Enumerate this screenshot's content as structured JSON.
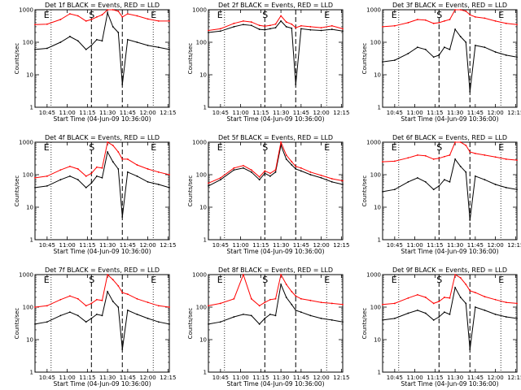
{
  "figure": {
    "panels": [
      {
        "title": "Det 1f BLACK = Events, RED = LLD",
        "xlabel": "Start Time (04-Jun-09 10:36:00)",
        "ylabel": "Counts/sec",
        "markers": [
          "E",
          "S",
          "E"
        ],
        "xticks": [
          "10:45",
          "11:00",
          "11:15",
          "11:30",
          "11:45",
          "12:00",
          "12:15"
        ],
        "yticks": [
          "1",
          "10",
          "100",
          "1000"
        ]
      },
      {
        "title": "Det 2f BLACK = Events, RED = LLD",
        "xlabel": "Start Time (04-Jun-09 10:36:00)",
        "ylabel": "Counts/sec",
        "markers": [
          "E",
          "S",
          "E"
        ],
        "xticks": [
          "10:45",
          "11:00",
          "11:15",
          "11:30",
          "11:45",
          "12:00",
          "12:15"
        ],
        "yticks": [
          "1",
          "10",
          "100",
          "1000"
        ]
      },
      {
        "title": "Det 3f BLACK = Events, RED = LLD",
        "xlabel": "Start Time (04-Jun-09 10:36:00)",
        "ylabel": "Counts/sec",
        "markers": [
          "E",
          "S",
          "E"
        ],
        "xticks": [
          "10:45",
          "11:00",
          "11:15",
          "11:30",
          "11:45",
          "12:00",
          "12:15"
        ],
        "yticks": [
          "1",
          "10",
          "100",
          "1000"
        ]
      },
      {
        "title": "Det 4f BLACK = Events, RED = LLD",
        "xlabel": "Start Time (04-Jun-09 10:36:00)",
        "ylabel": "Counts/sec",
        "markers": [
          "E",
          "S",
          "E"
        ],
        "xticks": [
          "10:45",
          "11:00",
          "11:15",
          "11:30",
          "11:45",
          "12:00",
          "12:15"
        ],
        "yticks": [
          "1",
          "10",
          "100",
          "1000"
        ]
      },
      {
        "title": "Det 5f BLACK = Events, RED = LLD",
        "xlabel": "Start Time (04-Jun-09 10:36:00)",
        "ylabel": "Counts/sec",
        "markers": [
          "E",
          "S",
          "E"
        ],
        "xticks": [
          "10:45",
          "11:00",
          "11:15",
          "11:30",
          "11:45",
          "12:00",
          "12:15"
        ],
        "yticks": [
          "1",
          "10",
          "100",
          "1000"
        ]
      },
      {
        "title": "Det 6f BLACK = Events, RED = LLD",
        "xlabel": "Start Time (04-Jun-09 10:36:00)",
        "ylabel": "Counts/sec",
        "markers": [
          "E",
          "S",
          "E"
        ],
        "xticks": [
          "10:45",
          "11:00",
          "11:15",
          "11:30",
          "11:45",
          "12:00",
          "12:15"
        ],
        "yticks": [
          "1",
          "10",
          "100",
          "1000"
        ]
      },
      {
        "title": "Det 7f BLACK = Events, RED = LLD",
        "xlabel": "Start Time (04-Jun-09 10:36:00)",
        "ylabel": "Counts/sec",
        "markers": [
          "E",
          "S",
          "E"
        ],
        "xticks": [
          "10:45",
          "11:00",
          "11:15",
          "11:30",
          "11:45",
          "12:00",
          "12:15"
        ],
        "yticks": [
          "1",
          "10",
          "100",
          "1000"
        ]
      },
      {
        "title": "Det 8f BLACK = Events, RED = LLD",
        "xlabel": "Start Time (04-Jun-09 10:36:00)",
        "ylabel": "Counts/sec",
        "markers": [
          "E",
          "S",
          "E"
        ],
        "xticks": [
          "10:45",
          "11:00",
          "11:15",
          "11:30",
          "11:45",
          "12:00",
          "12:15"
        ],
        "yticks": [
          "1",
          "10",
          "100",
          "1000"
        ]
      },
      {
        "title": "Det 9f BLACK = Events, RED = LLD",
        "xlabel": "Start Time (04-Jun-09 10:36:00)",
        "ylabel": "Counts/sec",
        "markers": [
          "E",
          "S",
          "E"
        ],
        "xticks": [
          "10:45",
          "11:00",
          "11:15",
          "11:30",
          "11:45",
          "12:00",
          "12:15"
        ],
        "yticks": [
          "1",
          "10",
          "100",
          "1000"
        ]
      }
    ]
  },
  "colors": {
    "events": "#000000",
    "lld": "#ff0000"
  },
  "chart_data": [
    {
      "type": "line",
      "title": "Det 1f BLACK = Events, RED = LLD",
      "xlabel": "Start Time (04-Jun-09 10:36:00)",
      "ylabel": "Counts/sec",
      "y_scale": "log",
      "ylim": [
        1,
        1000
      ],
      "xlim": [
        "10:36",
        "12:16"
      ],
      "vlines_dotted": [
        "10:48",
        "12:04"
      ],
      "vlines_dashed": [
        "11:18",
        "11:41"
      ],
      "x": [
        "10:36",
        "10:45",
        "10:55",
        "11:02",
        "11:08",
        "11:14",
        "11:18",
        "11:22",
        "11:26",
        "11:30",
        "11:34",
        "11:38",
        "11:41",
        "11:45",
        "11:52",
        "12:00",
        "12:08",
        "12:16"
      ],
      "series": [
        {
          "name": "Events",
          "color": "#000000",
          "values": [
            60,
            65,
            100,
            150,
            110,
            60,
            80,
            120,
            110,
            800,
            300,
            200,
            5,
            120,
            100,
            80,
            70,
            60
          ]
        },
        {
          "name": "LLD",
          "color": "#ff0000",
          "values": [
            350,
            360,
            500,
            750,
            650,
            450,
            500,
            600,
            700,
            1000,
            1000,
            900,
            600,
            750,
            650,
            520,
            450,
            450
          ]
        }
      ]
    },
    {
      "type": "line",
      "title": "Det 2f BLACK = Events, RED = LLD",
      "xlabel": "Start Time (04-Jun-09 10:36:00)",
      "ylabel": "Counts/sec",
      "y_scale": "log",
      "ylim": [
        1,
        1000
      ],
      "xlim": [
        "10:36",
        "12:16"
      ],
      "vlines_dotted": [
        "10:48",
        "12:04"
      ],
      "vlines_dashed": [
        "11:18",
        "11:41"
      ],
      "x": [
        "10:36",
        "10:45",
        "10:55",
        "11:02",
        "11:08",
        "11:14",
        "11:18",
        "11:22",
        "11:26",
        "11:30",
        "11:34",
        "11:38",
        "11:41",
        "11:45",
        "11:52",
        "12:00",
        "12:08",
        "12:16"
      ],
      "series": [
        {
          "name": "Events",
          "color": "#000000",
          "values": [
            200,
            220,
            300,
            350,
            330,
            250,
            240,
            260,
            280,
            450,
            300,
            270,
            5,
            260,
            240,
            230,
            250,
            220
          ]
        },
        {
          "name": "LLD",
          "color": "#ff0000",
          "values": [
            230,
            260,
            380,
            450,
            420,
            330,
            310,
            330,
            360,
            650,
            420,
            360,
            280,
            320,
            300,
            280,
            320,
            260
          ]
        }
      ]
    },
    {
      "type": "line",
      "title": "Det 3f BLACK = Events, RED = LLD",
      "xlabel": "Start Time (04-Jun-09 10:36:00)",
      "ylabel": "Counts/sec",
      "y_scale": "log",
      "ylim": [
        1,
        1000
      ],
      "xlim": [
        "10:36",
        "12:16"
      ],
      "vlines_dotted": [
        "10:48",
        "12:04"
      ],
      "vlines_dashed": [
        "11:18",
        "11:41"
      ],
      "x": [
        "10:36",
        "10:45",
        "10:55",
        "11:02",
        "11:08",
        "11:14",
        "11:18",
        "11:22",
        "11:26",
        "11:30",
        "11:34",
        "11:38",
        "11:41",
        "11:45",
        "11:52",
        "12:00",
        "12:08",
        "12:16"
      ],
      "series": [
        {
          "name": "Events",
          "color": "#000000",
          "values": [
            25,
            28,
            45,
            70,
            60,
            35,
            40,
            70,
            60,
            250,
            150,
            100,
            3,
            80,
            70,
            50,
            40,
            35
          ]
        },
        {
          "name": "LLD",
          "color": "#ff0000",
          "values": [
            300,
            320,
            400,
            500,
            480,
            380,
            400,
            450,
            500,
            1000,
            1000,
            900,
            700,
            600,
            550,
            450,
            380,
            350
          ]
        }
      ]
    },
    {
      "type": "line",
      "title": "Det 4f BLACK = Events, RED = LLD",
      "xlabel": "Start Time (04-Jun-09 10:36:00)",
      "ylabel": "Counts/sec",
      "y_scale": "log",
      "ylim": [
        1,
        1000
      ],
      "xlim": [
        "10:36",
        "12:16"
      ],
      "vlines_dotted": [
        "10:48",
        "12:04"
      ],
      "vlines_dashed": [
        "11:18",
        "11:41"
      ],
      "x": [
        "10:36",
        "10:45",
        "10:55",
        "11:02",
        "11:08",
        "11:14",
        "11:18",
        "11:22",
        "11:26",
        "11:30",
        "11:34",
        "11:38",
        "11:41",
        "11:45",
        "11:52",
        "12:00",
        "12:08",
        "12:16"
      ],
      "series": [
        {
          "name": "Events",
          "color": "#000000",
          "values": [
            40,
            45,
            70,
            90,
            70,
            40,
            55,
            90,
            80,
            500,
            250,
            150,
            5,
            120,
            90,
            60,
            50,
            40
          ]
        },
        {
          "name": "LLD",
          "color": "#ff0000",
          "values": [
            80,
            90,
            140,
            180,
            150,
            90,
            110,
            170,
            160,
            1000,
            800,
            500,
            300,
            300,
            200,
            150,
            120,
            100
          ]
        }
      ]
    },
    {
      "type": "line",
      "title": "Det 5f BLACK = Events, RED = LLD",
      "xlabel": "Start Time (04-Jun-09 10:36:00)",
      "ylabel": "Counts/sec",
      "y_scale": "log",
      "ylim": [
        1,
        1000
      ],
      "xlim": [
        "10:36",
        "12:16"
      ],
      "vlines_dotted": [
        "10:48",
        "12:04"
      ],
      "vlines_dashed": [
        "11:18",
        "11:41"
      ],
      "x": [
        "10:36",
        "10:45",
        "10:55",
        "11:02",
        "11:08",
        "11:14",
        "11:18",
        "11:22",
        "11:26",
        "11:30",
        "11:34",
        "11:38",
        "11:41",
        "11:45",
        "11:52",
        "12:00",
        "12:08",
        "12:16"
      ],
      "series": [
        {
          "name": "Events",
          "color": "#000000",
          "values": [
            45,
            70,
            140,
            160,
            120,
            70,
            110,
            90,
            120,
            800,
            300,
            200,
            150,
            130,
            100,
            80,
            60,
            50
          ]
        },
        {
          "name": "LLD",
          "color": "#ff0000",
          "values": [
            55,
            80,
            160,
            190,
            140,
            85,
            130,
            110,
            140,
            1000,
            400,
            250,
            180,
            160,
            120,
            95,
            75,
            65
          ]
        }
      ]
    },
    {
      "type": "line",
      "title": "Det 6f BLACK = Events, RED = LLD",
      "xlabel": "Start Time (04-Jun-09 10:36:00)",
      "ylabel": "Counts/sec",
      "y_scale": "log",
      "ylim": [
        1,
        1000
      ],
      "xlim": [
        "10:36",
        "12:16"
      ],
      "vlines_dotted": [
        "10:48",
        "12:04"
      ],
      "vlines_dashed": [
        "11:18",
        "11:41"
      ],
      "x": [
        "10:36",
        "10:45",
        "10:55",
        "11:02",
        "11:08",
        "11:14",
        "11:18",
        "11:22",
        "11:26",
        "11:30",
        "11:34",
        "11:38",
        "11:41",
        "11:45",
        "11:52",
        "12:00",
        "12:08",
        "12:16"
      ],
      "series": [
        {
          "name": "Events",
          "color": "#000000",
          "values": [
            30,
            35,
            60,
            80,
            60,
            35,
            45,
            70,
            60,
            300,
            180,
            120,
            4,
            90,
            70,
            50,
            40,
            35
          ]
        },
        {
          "name": "LLD",
          "color": "#ff0000",
          "values": [
            250,
            260,
            330,
            400,
            380,
            300,
            320,
            360,
            400,
            1000,
            1000,
            800,
            500,
            450,
            400,
            350,
            300,
            280
          ]
        }
      ]
    },
    {
      "type": "line",
      "title": "Det 7f BLACK = Events, RED = LLD",
      "xlabel": "Start Time (04-Jun-09 10:36:00)",
      "ylabel": "Counts/sec",
      "y_scale": "log",
      "ylim": [
        1,
        1000
      ],
      "xlim": [
        "10:36",
        "12:16"
      ],
      "vlines_dotted": [
        "10:48",
        "12:04"
      ],
      "vlines_dashed": [
        "11:18",
        "11:41"
      ],
      "x": [
        "10:36",
        "10:45",
        "10:55",
        "11:02",
        "11:08",
        "11:14",
        "11:18",
        "11:22",
        "11:26",
        "11:30",
        "11:34",
        "11:38",
        "11:41",
        "11:45",
        "11:52",
        "12:00",
        "12:08",
        "12:16"
      ],
      "series": [
        {
          "name": "Events",
          "color": "#000000",
          "values": [
            30,
            35,
            55,
            70,
            55,
            35,
            45,
            60,
            55,
            300,
            150,
            100,
            5,
            80,
            60,
            45,
            35,
            30
          ]
        },
        {
          "name": "LLD",
          "color": "#ff0000",
          "values": [
            100,
            110,
            170,
            220,
            180,
            110,
            130,
            170,
            160,
            1000,
            700,
            450,
            280,
            250,
            180,
            140,
            110,
            100
          ]
        }
      ]
    },
    {
      "type": "line",
      "title": "Det 8f BLACK = Events, RED = LLD",
      "xlabel": "Start Time (04-Jun-09 10:36:00)",
      "ylabel": "Counts/sec",
      "y_scale": "log",
      "ylim": [
        1,
        1000
      ],
      "xlim": [
        "10:36",
        "12:16"
      ],
      "vlines_dotted": [
        "10:48",
        "12:04"
      ],
      "vlines_dashed": [
        "11:18",
        "11:41"
      ],
      "x": [
        "10:36",
        "10:45",
        "10:55",
        "11:02",
        "11:08",
        "11:14",
        "11:18",
        "11:22",
        "11:26",
        "11:30",
        "11:34",
        "11:38",
        "11:41",
        "11:45",
        "11:52",
        "12:00",
        "12:08",
        "12:16"
      ],
      "series": [
        {
          "name": "Events",
          "color": "#000000",
          "values": [
            30,
            35,
            50,
            60,
            55,
            30,
            45,
            60,
            55,
            500,
            200,
            120,
            80,
            70,
            55,
            45,
            40,
            35
          ]
        },
        {
          "name": "LLD",
          "color": "#ff0000",
          "values": [
            110,
            130,
            180,
            1000,
            180,
            110,
            140,
            170,
            180,
            1000,
            500,
            300,
            220,
            180,
            160,
            140,
            130,
            120
          ]
        }
      ]
    },
    {
      "type": "line",
      "title": "Det 9f BLACK = Events, RED = LLD",
      "xlabel": "Start Time (04-Jun-09 10:36:00)",
      "ylabel": "Counts/sec",
      "y_scale": "log",
      "ylim": [
        1,
        1000
      ],
      "xlim": [
        "10:36",
        "12:16"
      ],
      "vlines_dotted": [
        "10:48",
        "12:04"
      ],
      "vlines_dashed": [
        "11:18",
        "11:41"
      ],
      "x": [
        "10:36",
        "10:45",
        "10:55",
        "11:02",
        "11:08",
        "11:14",
        "11:18",
        "11:22",
        "11:26",
        "11:30",
        "11:34",
        "11:38",
        "11:41",
        "11:45",
        "11:52",
        "12:00",
        "12:08",
        "12:16"
      ],
      "series": [
        {
          "name": "Events",
          "color": "#000000",
          "values": [
            40,
            45,
            65,
            80,
            65,
            40,
            50,
            70,
            60,
            400,
            200,
            130,
            5,
            100,
            80,
            60,
            50,
            45
          ]
        },
        {
          "name": "LLD",
          "color": "#ff0000",
          "values": [
            120,
            130,
            190,
            240,
            200,
            130,
            150,
            200,
            190,
            1000,
            800,
            500,
            320,
            280,
            210,
            170,
            140,
            130
          ]
        }
      ]
    }
  ]
}
